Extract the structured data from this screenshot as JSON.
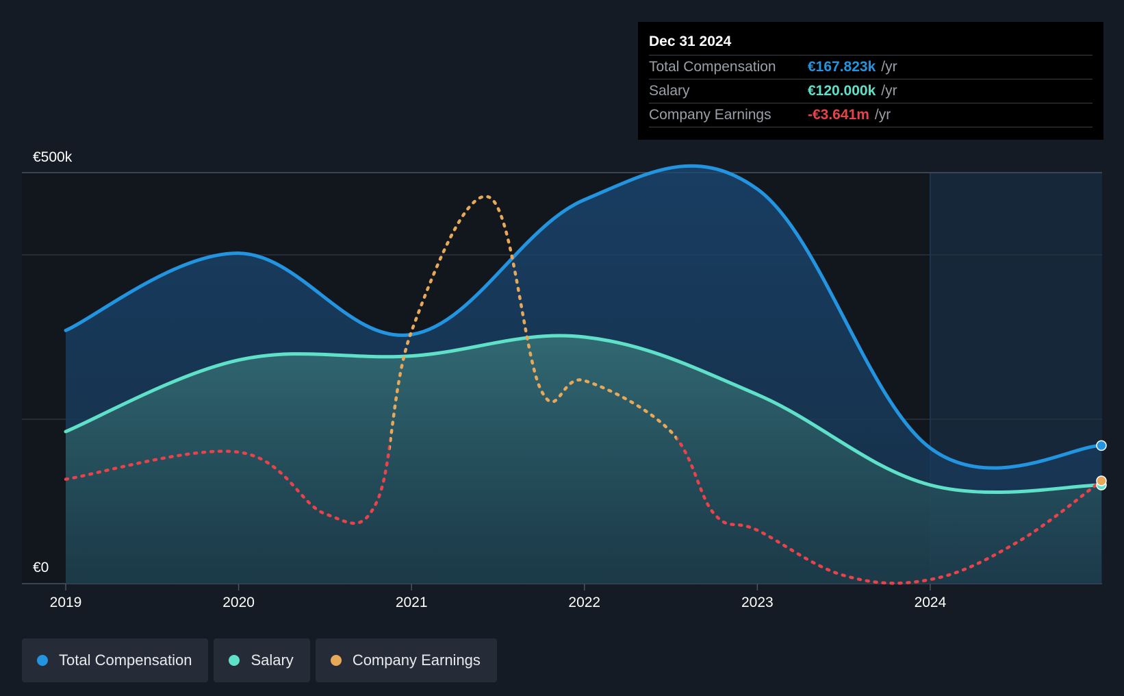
{
  "chart_data": {
    "type": "area",
    "x_labels": [
      "2019",
      "2020",
      "2021",
      "2022",
      "2023",
      "2024"
    ],
    "y_labels": {
      "top": "€500k",
      "bottom": "€0"
    },
    "ylim": [
      0,
      500
    ],
    "y_unit": "€k",
    "forecast_shaded_from": "2024",
    "series": [
      {
        "name": "Total Compensation",
        "color": "#2394df",
        "style": "solid-area",
        "points": [
          [
            2019.0,
            308
          ],
          [
            2020.0,
            402
          ],
          [
            2021.0,
            303
          ],
          [
            2022.0,
            467
          ],
          [
            2023.0,
            480
          ],
          [
            2024.0,
            165
          ],
          [
            2024.99,
            168
          ]
        ]
      },
      {
        "name": "Salary",
        "color": "#5fe0c8",
        "style": "solid-area",
        "points": [
          [
            2019.0,
            185
          ],
          [
            2020.0,
            272
          ],
          [
            2021.0,
            277
          ],
          [
            2022.0,
            300
          ],
          [
            2023.0,
            230
          ],
          [
            2024.0,
            120
          ],
          [
            2024.99,
            120
          ]
        ]
      },
      {
        "name": "Company Earnings",
        "color": "#e8a85a",
        "negative_color": "#e8434b",
        "style": "dotted",
        "points": [
          [
            2019.0,
            127
          ],
          [
            2020.0,
            160
          ],
          [
            2020.5,
            85
          ],
          [
            2020.8,
            100
          ],
          [
            2021.0,
            307
          ],
          [
            2021.45,
            470
          ],
          [
            2021.75,
            235
          ],
          [
            2022.0,
            247
          ],
          [
            2022.5,
            185
          ],
          [
            2022.75,
            85
          ],
          [
            2023.0,
            65
          ],
          [
            2023.5,
            10
          ],
          [
            2024.0,
            5
          ],
          [
            2024.5,
            50
          ],
          [
            2024.99,
            125
          ]
        ],
        "negative_ranges": [
          [
            2019.0,
            2020.85
          ],
          [
            2022.55,
            2024.99
          ]
        ]
      }
    ]
  },
  "tooltip": {
    "date": "Dec 31 2024",
    "rows": [
      {
        "label": "Total Compensation",
        "value": "€167.823k",
        "unit": "/yr",
        "color": "#2394df"
      },
      {
        "label": "Salary",
        "value": "€120.000k",
        "unit": "/yr",
        "color": "#5fe0c8"
      },
      {
        "label": "Company Earnings",
        "value": "-€3.641m",
        "unit": "/yr",
        "color": "#e8434b"
      }
    ]
  },
  "legend": [
    {
      "label": "Total Compensation",
      "color": "#2394df"
    },
    {
      "label": "Salary",
      "color": "#5fe0c8"
    },
    {
      "label": "Company Earnings",
      "color": "#e8a85a"
    }
  ]
}
